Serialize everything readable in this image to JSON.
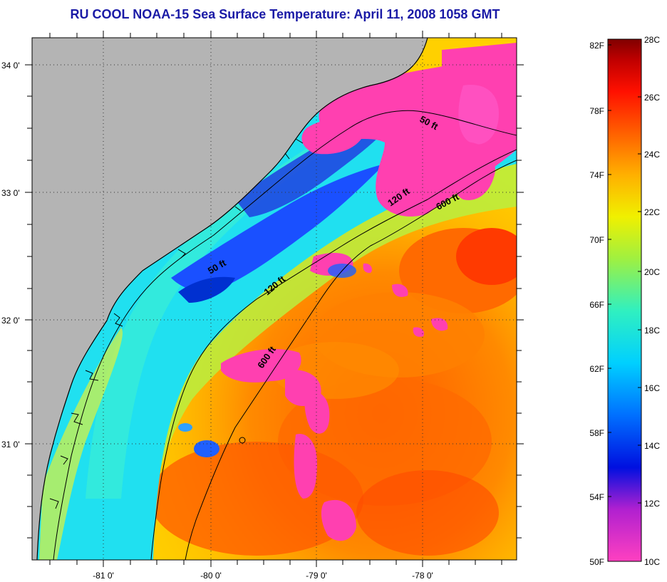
{
  "title": "RU COOL  NOAA-15  Sea Surface Temperature:  April 11, 2008 1058 GMT",
  "map": {
    "lat_labels": [
      "34 0'",
      "33 0'",
      "32 0'",
      "31 0'"
    ],
    "lon_labels": [
      "-81 0'",
      "-80 0'",
      "-79 0'",
      "-78 0'"
    ],
    "isobaths": [
      {
        "depth": "50 ft"
      },
      {
        "depth": "50 ft"
      },
      {
        "depth": "120 ft"
      },
      {
        "depth": "120 ft"
      },
      {
        "depth": "600 ft"
      },
      {
        "depth": "600 ft"
      }
    ],
    "land_color": "#b4b4b4"
  },
  "colorbar": {
    "fahrenheit_labels": [
      "82F",
      "78F",
      "74F",
      "70F",
      "66F",
      "62F",
      "58F",
      "54F",
      "50F"
    ],
    "celsius_labels": [
      "28C",
      "26C",
      "24C",
      "22C",
      "20C",
      "18C",
      "16C",
      "14C",
      "12C",
      "10C"
    ],
    "colors": [
      "#ff40c0",
      "#8020d0",
      "#0010e0",
      "#0070ff",
      "#00d0ff",
      "#30f0c0",
      "#a0f040",
      "#f0f000",
      "#ffb000",
      "#ff6000",
      "#ff1000",
      "#c00000",
      "#800000"
    ]
  }
}
